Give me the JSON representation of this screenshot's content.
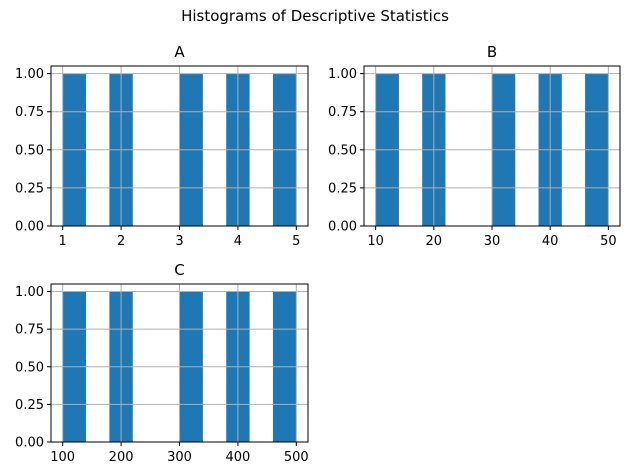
{
  "figure": {
    "suptitle": "Histograms of Descriptive Statistics"
  },
  "colors": {
    "bar": "#1f77b4",
    "grid": "#b0b0b0",
    "axis": "#000000"
  },
  "chart_data": [
    {
      "type": "bar",
      "title": "A",
      "bins": 10,
      "xlim": [
        0.8,
        5.2
      ],
      "ylim": [
        0,
        1.05
      ],
      "xticks": [
        1,
        2,
        3,
        4,
        5
      ],
      "xtick_labels": [
        "1",
        "2",
        "3",
        "4",
        "5"
      ],
      "yticks": [
        0,
        0.25,
        0.5,
        0.75,
        1.0
      ],
      "ytick_labels": [
        "0.00",
        "0.25",
        "0.50",
        "0.75",
        "1.00"
      ],
      "bars": [
        {
          "x0": 1.0,
          "x1": 1.4,
          "count": 1
        },
        {
          "x0": 1.8,
          "x1": 2.2,
          "count": 1
        },
        {
          "x0": 3.0,
          "x1": 3.4,
          "count": 1
        },
        {
          "x0": 3.8,
          "x1": 4.2,
          "count": 1
        },
        {
          "x0": 4.6,
          "x1": 5.0,
          "count": 1
        }
      ],
      "grid": true
    },
    {
      "type": "bar",
      "title": "B",
      "bins": 10,
      "xlim": [
        8,
        52
      ],
      "ylim": [
        0,
        1.05
      ],
      "xticks": [
        10,
        20,
        30,
        40,
        50
      ],
      "xtick_labels": [
        "10",
        "20",
        "30",
        "40",
        "50"
      ],
      "yticks": [
        0,
        0.25,
        0.5,
        0.75,
        1.0
      ],
      "ytick_labels": [
        "0.00",
        "0.25",
        "0.50",
        "0.75",
        "1.00"
      ],
      "bars": [
        {
          "x0": 10,
          "x1": 14,
          "count": 1
        },
        {
          "x0": 18,
          "x1": 22,
          "count": 1
        },
        {
          "x0": 30,
          "x1": 34,
          "count": 1
        },
        {
          "x0": 38,
          "x1": 42,
          "count": 1
        },
        {
          "x0": 46,
          "x1": 50,
          "count": 1
        }
      ],
      "grid": true
    },
    {
      "type": "bar",
      "title": "C",
      "bins": 10,
      "xlim": [
        80,
        520
      ],
      "ylim": [
        0,
        1.05
      ],
      "xticks": [
        100,
        200,
        300,
        400,
        500
      ],
      "xtick_labels": [
        "100",
        "200",
        "300",
        "400",
        "500"
      ],
      "yticks": [
        0,
        0.25,
        0.5,
        0.75,
        1.0
      ],
      "ytick_labels": [
        "0.00",
        "0.25",
        "0.50",
        "0.75",
        "1.00"
      ],
      "bars": [
        {
          "x0": 100,
          "x1": 140,
          "count": 1
        },
        {
          "x0": 180,
          "x1": 220,
          "count": 1
        },
        {
          "x0": 300,
          "x1": 340,
          "count": 1
        },
        {
          "x0": 380,
          "x1": 420,
          "count": 1
        },
        {
          "x0": 460,
          "x1": 500,
          "count": 1
        }
      ],
      "grid": true
    }
  ]
}
